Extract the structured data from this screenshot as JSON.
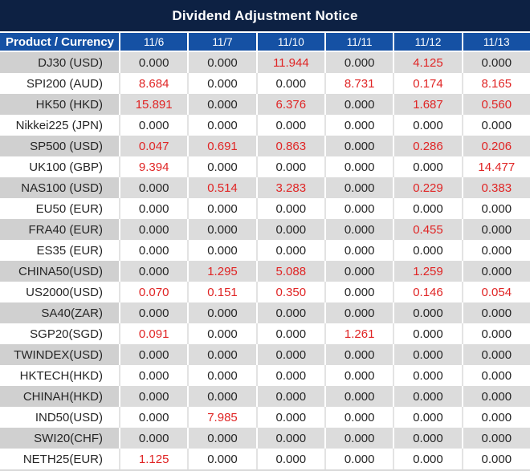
{
  "title": "Dividend Adjustment Notice",
  "header": {
    "product_label": "Product / Currency",
    "dates": [
      "11/6",
      "11/7",
      "11/10",
      "11/11",
      "11/12",
      "11/13"
    ]
  },
  "rows": [
    {
      "product": "DJ30 (USD)",
      "values": [
        "0.000",
        "0.000",
        "11.944",
        "0.000",
        "4.125",
        "0.000"
      ]
    },
    {
      "product": "SPI200 (AUD)",
      "values": [
        "8.684",
        "0.000",
        "0.000",
        "8.731",
        "0.174",
        "8.165"
      ]
    },
    {
      "product": "HK50 (HKD)",
      "values": [
        "15.891",
        "0.000",
        "6.376",
        "0.000",
        "1.687",
        "0.560"
      ]
    },
    {
      "product": "Nikkei225 (JPN)",
      "values": [
        "0.000",
        "0.000",
        "0.000",
        "0.000",
        "0.000",
        "0.000"
      ]
    },
    {
      "product": "SP500 (USD)",
      "values": [
        "0.047",
        "0.691",
        "0.863",
        "0.000",
        "0.286",
        "0.206"
      ]
    },
    {
      "product": "UK100 (GBP)",
      "values": [
        "9.394",
        "0.000",
        "0.000",
        "0.000",
        "0.000",
        "14.477"
      ]
    },
    {
      "product": "NAS100 (USD)",
      "values": [
        "0.000",
        "0.514",
        "3.283",
        "0.000",
        "0.229",
        "0.383"
      ]
    },
    {
      "product": "EU50 (EUR)",
      "values": [
        "0.000",
        "0.000",
        "0.000",
        "0.000",
        "0.000",
        "0.000"
      ]
    },
    {
      "product": "FRA40 (EUR)",
      "values": [
        "0.000",
        "0.000",
        "0.000",
        "0.000",
        "0.455",
        "0.000"
      ]
    },
    {
      "product": "ES35 (EUR)",
      "values": [
        "0.000",
        "0.000",
        "0.000",
        "0.000",
        "0.000",
        "0.000"
      ]
    },
    {
      "product": "CHINA50(USD)",
      "values": [
        "0.000",
        "1.295",
        "5.088",
        "0.000",
        "1.259",
        "0.000"
      ]
    },
    {
      "product": "US2000(USD)",
      "values": [
        "0.070",
        "0.151",
        "0.350",
        "0.000",
        "0.146",
        "0.054"
      ]
    },
    {
      "product": "SA40(ZAR)",
      "values": [
        "0.000",
        "0.000",
        "0.000",
        "0.000",
        "0.000",
        "0.000"
      ]
    },
    {
      "product": "SGP20(SGD)",
      "values": [
        "0.091",
        "0.000",
        "0.000",
        "1.261",
        "0.000",
        "0.000"
      ]
    },
    {
      "product": "TWINDEX(USD)",
      "values": [
        "0.000",
        "0.000",
        "0.000",
        "0.000",
        "0.000",
        "0.000"
      ]
    },
    {
      "product": "HKTECH(HKD)",
      "values": [
        "0.000",
        "0.000",
        "0.000",
        "0.000",
        "0.000",
        "0.000"
      ]
    },
    {
      "product": "CHINAH(HKD)",
      "values": [
        "0.000",
        "0.000",
        "0.000",
        "0.000",
        "0.000",
        "0.000"
      ]
    },
    {
      "product": "IND50(USD)",
      "values": [
        "0.000",
        "7.985",
        "0.000",
        "0.000",
        "0.000",
        "0.000"
      ]
    },
    {
      "product": "SWI20(CHF)",
      "values": [
        "0.000",
        "0.000",
        "0.000",
        "0.000",
        "0.000",
        "0.000"
      ]
    },
    {
      "product": "NETH25(EUR)",
      "values": [
        "1.125",
        "0.000",
        "0.000",
        "0.000",
        "0.000",
        "0.000"
      ]
    }
  ],
  "colors": {
    "title_bg": "#0d2143",
    "header_bg": "#1551a4",
    "row_stripe": "#dcdcdc",
    "product_stripe": "#d0d0d0",
    "highlight_red": "#e02525",
    "value_text": "#262626"
  },
  "zero_value": "0.000"
}
